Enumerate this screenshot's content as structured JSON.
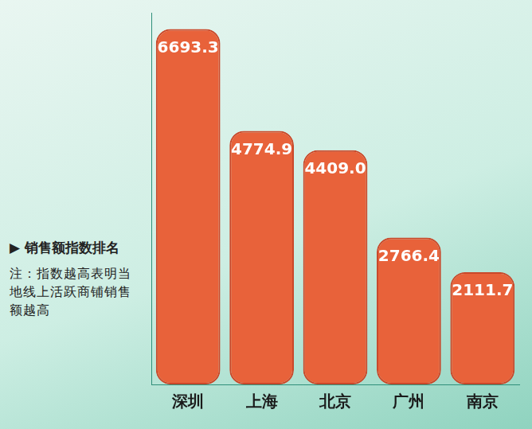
{
  "chart_data": {
    "type": "bar",
    "title": "▶ 销售额指数排名",
    "subtitle": "注：指数越高表明当地线上活跃商铺销售额越高",
    "categories": [
      "深圳",
      "上海",
      "北京",
      "广州",
      "南京"
    ],
    "values": [
      6693.3,
      4774.9,
      4409.0,
      2766.4,
      2111.7
    ],
    "value_labels": [
      "6693.3",
      "4774.9",
      "4409.0",
      "2766.4",
      "2111.7"
    ],
    "color": "#e8623a",
    "ylim": [
      0,
      7000
    ],
    "grid": false,
    "data_labels": true,
    "tick_labels": "x"
  }
}
